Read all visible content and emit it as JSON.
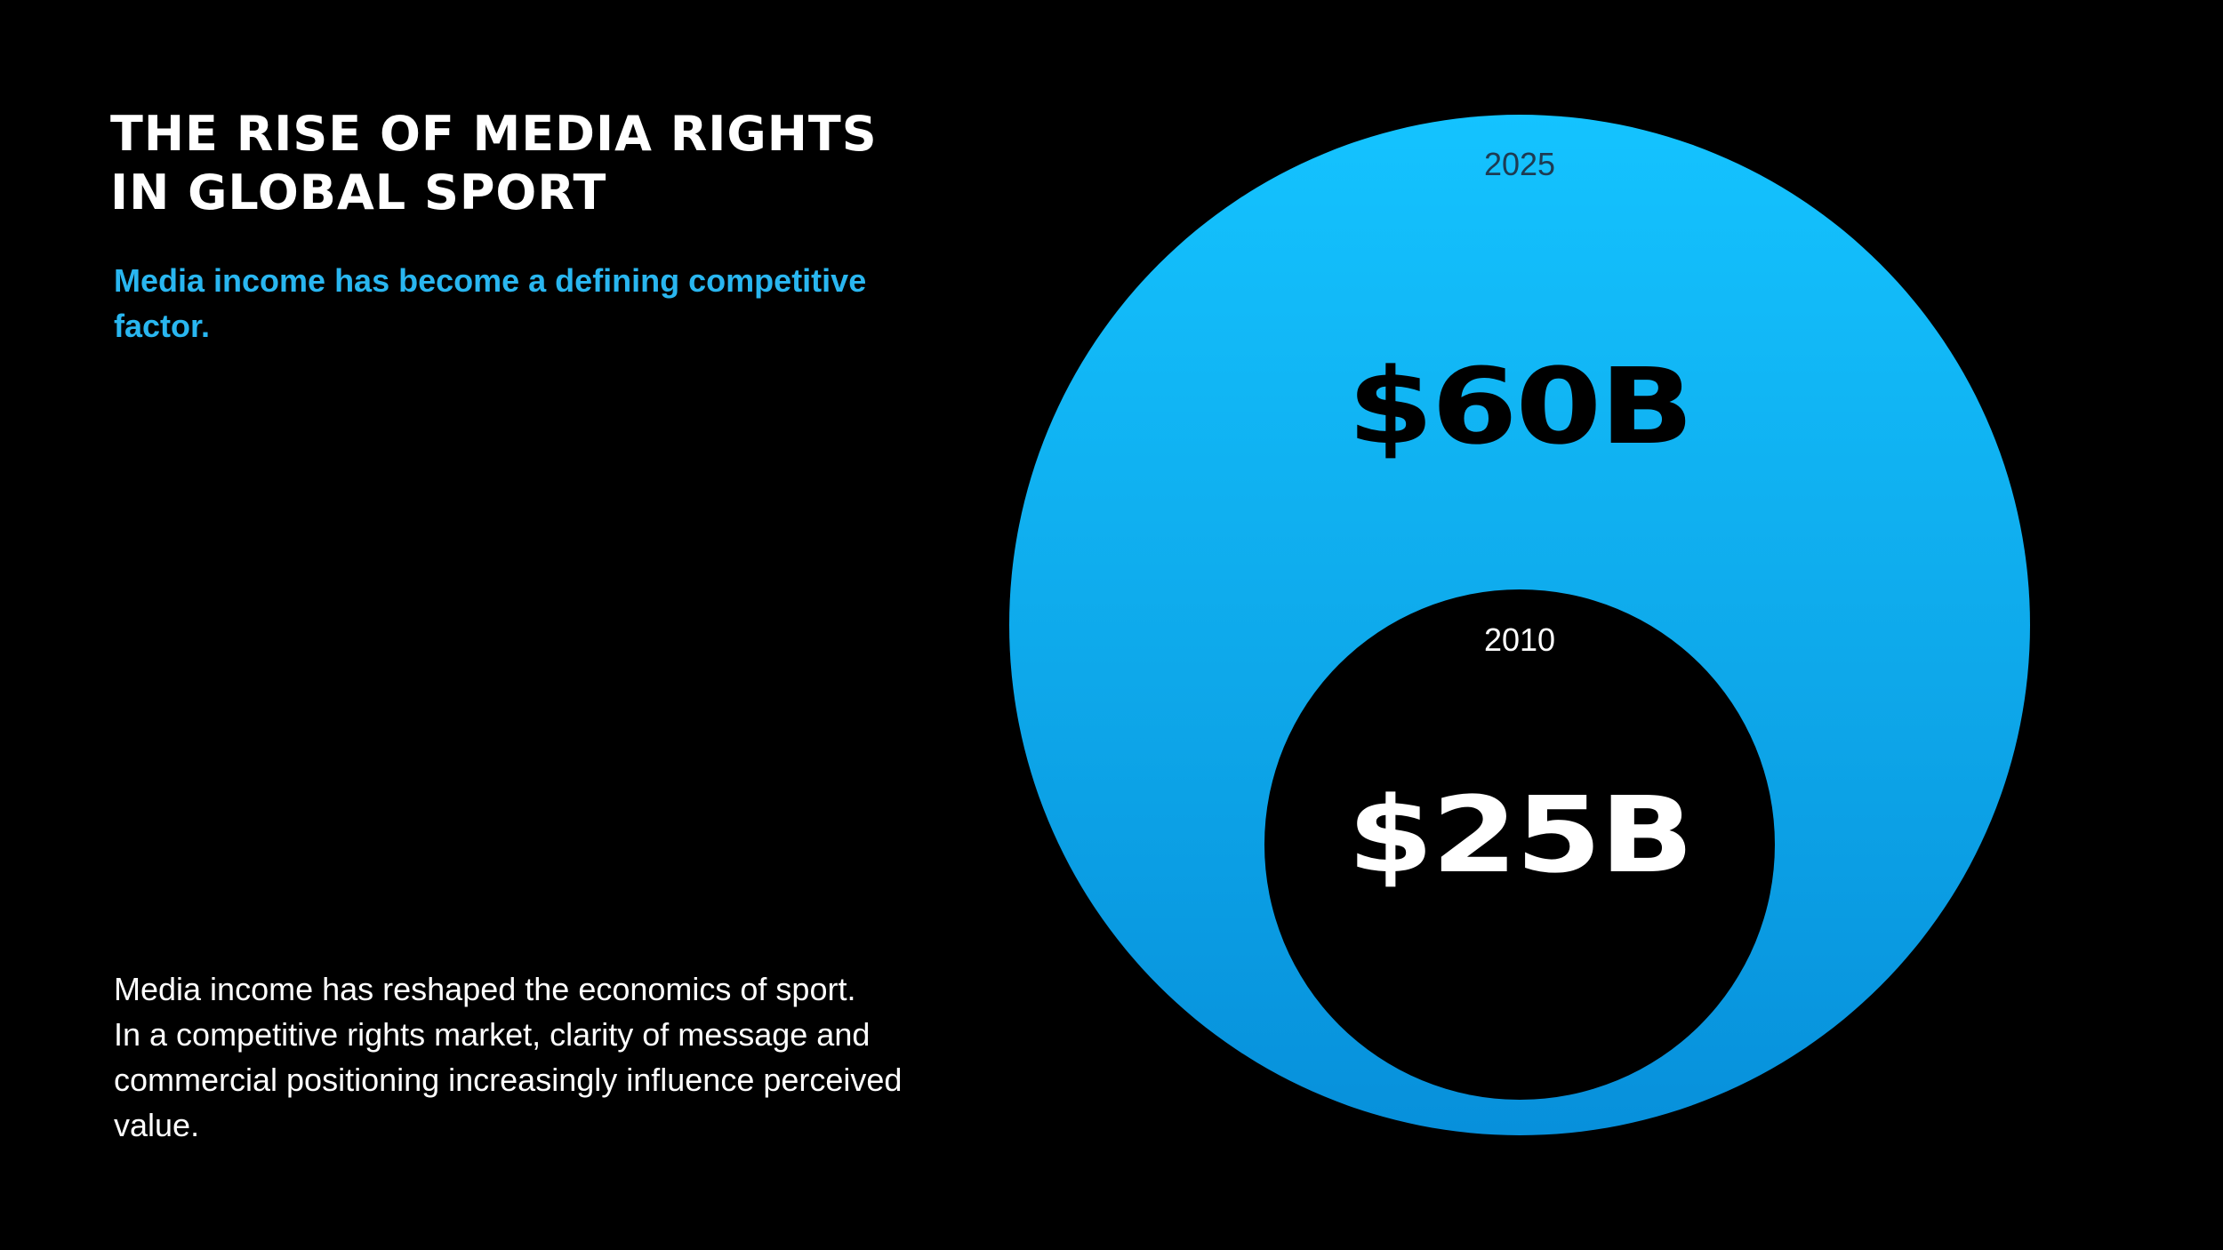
{
  "title_lines": [
    "THE RISE OF MEDIA RIGHTS",
    "IN GLOBAL SPORT"
  ],
  "subtitle_lines": [
    "Media income has become a defining competitive",
    "factor."
  ],
  "body_lines": [
    "Media income has reshaped the economics of sport.",
    "In a competitive rights market, clarity of message and",
    "commercial positioning increasingly influence perceived",
    "value."
  ],
  "diagram": {
    "outer": {
      "year": "2025",
      "value": "$60B",
      "amount_billion": 60
    },
    "inner": {
      "year": "2010",
      "value": "$25B",
      "amount_billion": 25
    }
  },
  "colors": {
    "background": "#000000",
    "accent": "#29b6f0",
    "circle_top": "#14c3ff",
    "circle_bottom": "#0790db"
  }
}
